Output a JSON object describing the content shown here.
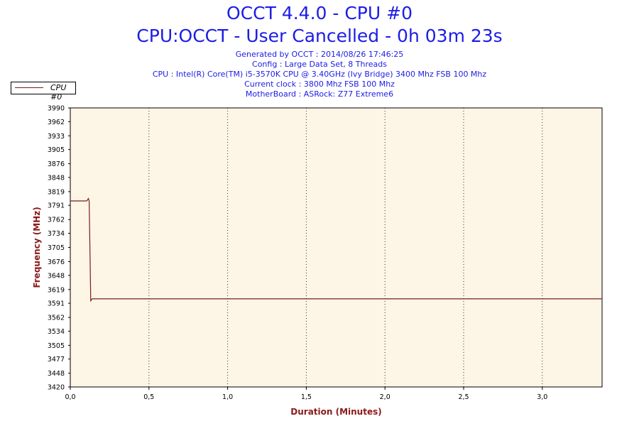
{
  "header": {
    "title": "OCCT 4.4.0 - CPU #0",
    "subtitle": "CPU:OCCT - User Cancelled - 0h 03m 23s",
    "info": [
      "Generated by OCCT : 2014/08/26 17:46:25",
      "Config : Large Data Set, 8 Threads",
      "CPU : Intel(R) Core(TM) i5-3570K CPU @ 3.40GHz (Ivy Bridge) 3400 Mhz FSB 100 Mhz",
      "Current clock : 3800 Mhz FSB 100 Mhz",
      "MotherBoard : ASRock: Z77 Extreme6"
    ]
  },
  "colors": {
    "title": "#1c1ce6",
    "axis_label": "#8b1a1a",
    "series": "#7a1d1d",
    "plot_bg": "#fdf5e6",
    "grid": "#333333"
  },
  "chart_data": {
    "type": "line",
    "title": "OCCT 4.4.0 - CPU #0",
    "xlabel": "Duration (Minutes)",
    "ylabel": "Frequency (MHz)",
    "xlim": [
      0,
      3.38
    ],
    "ylim": [
      3420,
      3990
    ],
    "x_ticks": [
      "0,0",
      "0,5",
      "1,0",
      "1,5",
      "2,0",
      "2,5",
      "3,0"
    ],
    "x_tick_values": [
      0,
      0.5,
      1.0,
      1.5,
      2.0,
      2.5,
      3.0
    ],
    "y_ticks": [
      3420,
      3448,
      3477,
      3505,
      3534,
      3562,
      3591,
      3619,
      3648,
      3676,
      3705,
      3734,
      3762,
      3791,
      3819,
      3848,
      3876,
      3905,
      3933,
      3962,
      3990
    ],
    "grid": "vertical dotted",
    "legend_position": "top-left",
    "series": [
      {
        "name": "CPU #0",
        "x": [
          0,
          0.105,
          0.115,
          0.12,
          0.125,
          0.13,
          0.14,
          3.38
        ],
        "values": [
          3800,
          3800,
          3805,
          3800,
          3700,
          3596,
          3600,
          3600
        ]
      }
    ]
  }
}
